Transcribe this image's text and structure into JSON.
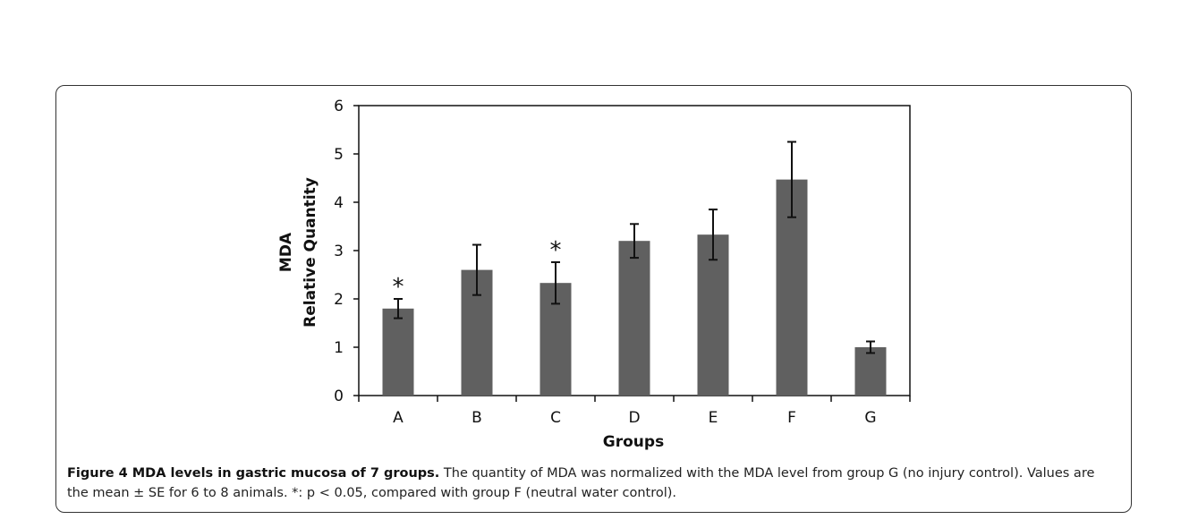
{
  "chart_data": {
    "type": "bar",
    "categories": [
      "A",
      "B",
      "C",
      "D",
      "E",
      "F",
      "G"
    ],
    "values": [
      1.8,
      2.6,
      2.33,
      3.2,
      3.33,
      4.47,
      1.0
    ],
    "error": [
      0.2,
      0.52,
      0.43,
      0.35,
      0.52,
      0.78,
      0.12
    ],
    "significance": [
      "*",
      "",
      "*",
      "",
      "",
      "",
      ""
    ],
    "xlabel": "Groups",
    "ylabel": [
      "MDA",
      "Relative Quantity"
    ],
    "ylim": [
      0,
      6
    ],
    "yticks": [
      "0",
      "1",
      "2",
      "3",
      "4",
      "5",
      "6"
    ],
    "bar_color": "#606060",
    "grid": false,
    "legend": "none"
  },
  "caption": {
    "label": "Figure 4 MDA levels in gastric mucosa of 7 groups.",
    "text": " The quantity of MDA was normalized with the MDA level from group G (no injury control). Values are the mean ± SE for 6 to 8 animals. *: p < 0.05, compared with group F (neutral water control)."
  }
}
